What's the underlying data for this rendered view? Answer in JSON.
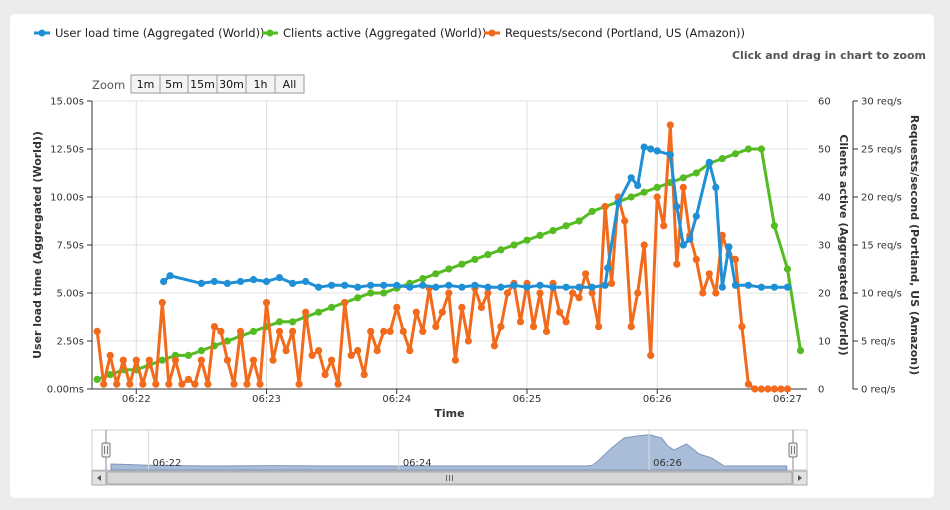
{
  "hint": "Click and drag in chart to zoom",
  "zoom": {
    "label": "Zoom",
    "buttons": [
      "1m",
      "5m",
      "15m",
      "30m",
      "1h",
      "All"
    ]
  },
  "colors": {
    "series0": "#1f8fd6",
    "series1": "#55bb22",
    "series2": "#f26a1b",
    "navigator_fill": "#a9bcd8",
    "navigator_line": "#7f96bb",
    "grid": "#e0e0e0"
  },
  "chart_data": {
    "type": "line",
    "xlabel": "Time",
    "x_axis": {
      "ticks": [
        "06:22",
        "06:23",
        "06:24",
        "06:25",
        "06:26",
        "06:27"
      ],
      "range_minutes": [
        -0.34,
        5.15
      ]
    },
    "y_axes": [
      {
        "title": "User load time (Aggregated (World))",
        "min": 0,
        "max": 15,
        "tick_labels": [
          "0.00ms",
          "2.50s",
          "5.00s",
          "7.50s",
          "10.00s",
          "12.50s",
          "15.00s"
        ]
      },
      {
        "title": "Clients active (Aggregated (World))",
        "min": 0,
        "max": 60,
        "tick_labels": [
          "0",
          "10",
          "20",
          "30",
          "40",
          "50",
          "60"
        ]
      },
      {
        "title": "Requests/second (Portland, US (Amazon))",
        "min": 0,
        "max": 30,
        "tick_labels": [
          "0 req/s",
          "5 req/s",
          "10 req/s",
          "15 req/s",
          "20 req/s",
          "25 req/s",
          "30 req/s"
        ]
      }
    ],
    "series": [
      {
        "name": "User load time (Aggregated (World))",
        "unit": "s",
        "axis": 0,
        "x": [
          0.21,
          0.26,
          0.5,
          0.6,
          0.7,
          0.8,
          0.9,
          1.0,
          1.1,
          1.2,
          1.3,
          1.4,
          1.5,
          1.6,
          1.7,
          1.8,
          1.9,
          2.0,
          2.1,
          2.2,
          2.3,
          2.4,
          2.5,
          2.6,
          2.7,
          2.8,
          2.9,
          3.0,
          3.1,
          3.2,
          3.3,
          3.4,
          3.5,
          3.6,
          3.62,
          3.7,
          3.8,
          3.85,
          3.9,
          3.95,
          4.0,
          4.1,
          4.15,
          4.2,
          4.25,
          4.3,
          4.4,
          4.45,
          4.5,
          4.55,
          4.6,
          4.7,
          4.8,
          4.9,
          5.0
        ],
        "y": [
          5.6,
          5.9,
          5.5,
          5.6,
          5.5,
          5.6,
          5.7,
          5.6,
          5.8,
          5.5,
          5.6,
          5.3,
          5.4,
          5.4,
          5.3,
          5.4,
          5.4,
          5.4,
          5.3,
          5.4,
          5.3,
          5.4,
          5.3,
          5.4,
          5.3,
          5.3,
          5.4,
          5.3,
          5.4,
          5.3,
          5.3,
          5.3,
          5.3,
          5.4,
          6.3,
          9.7,
          11.0,
          10.6,
          12.6,
          12.5,
          12.4,
          12.2,
          9.5,
          7.5,
          7.8,
          9.0,
          11.8,
          10.5,
          5.3,
          7.4,
          5.4,
          5.4,
          5.3,
          5.3,
          5.3
        ]
      },
      {
        "name": "Clients active (Aggregated (World))",
        "unit": "",
        "axis": 1,
        "x": [
          -0.3,
          -0.2,
          -0.1,
          0.0,
          0.1,
          0.2,
          0.3,
          0.4,
          0.5,
          0.6,
          0.7,
          0.8,
          0.9,
          1.0,
          1.1,
          1.2,
          1.3,
          1.4,
          1.5,
          1.6,
          1.7,
          1.8,
          1.9,
          2.0,
          2.1,
          2.2,
          2.3,
          2.4,
          2.5,
          2.6,
          2.7,
          2.8,
          2.9,
          3.0,
          3.1,
          3.2,
          3.3,
          3.4,
          3.5,
          3.6,
          3.7,
          3.8,
          3.9,
          4.0,
          4.1,
          4.2,
          4.3,
          4.4,
          4.5,
          4.6,
          4.7,
          4.8,
          4.9,
          5.0,
          5.1
        ],
        "y": [
          2,
          3,
          4,
          4,
          5,
          6,
          7,
          7,
          8,
          9,
          10,
          11,
          12,
          13,
          14,
          14,
          15,
          16,
          17,
          18,
          19,
          20,
          20,
          21,
          22,
          23,
          24,
          25,
          26,
          27,
          28,
          29,
          30,
          31,
          32,
          33,
          34,
          35,
          37,
          38,
          39,
          40,
          41,
          42,
          43,
          44,
          45,
          47,
          48,
          49,
          50,
          50,
          34,
          25,
          8
        ]
      },
      {
        "name": "Requests/second (Portland, US (Amazon))",
        "unit": "req/s",
        "axis": 2,
        "x": [
          -0.3,
          -0.25,
          -0.2,
          -0.15,
          -0.1,
          -0.05,
          0.0,
          0.05,
          0.1,
          0.15,
          0.2,
          0.25,
          0.3,
          0.35,
          0.4,
          0.45,
          0.5,
          0.55,
          0.6,
          0.65,
          0.7,
          0.75,
          0.8,
          0.85,
          0.9,
          0.95,
          1.0,
          1.05,
          1.1,
          1.15,
          1.2,
          1.25,
          1.3,
          1.35,
          1.4,
          1.45,
          1.5,
          1.55,
          1.6,
          1.65,
          1.7,
          1.75,
          1.8,
          1.85,
          1.9,
          1.95,
          2.0,
          2.05,
          2.1,
          2.15,
          2.2,
          2.25,
          2.3,
          2.35,
          2.4,
          2.45,
          2.5,
          2.55,
          2.6,
          2.65,
          2.7,
          2.75,
          2.8,
          2.85,
          2.9,
          2.95,
          3.0,
          3.05,
          3.1,
          3.15,
          3.2,
          3.25,
          3.3,
          3.35,
          3.4,
          3.45,
          3.5,
          3.55,
          3.6,
          3.65,
          3.7,
          3.75,
          3.8,
          3.85,
          3.9,
          3.95,
          4.0,
          4.05,
          4.1,
          4.15,
          4.2,
          4.25,
          4.3,
          4.35,
          4.4,
          4.45,
          4.5,
          4.55,
          4.6,
          4.65,
          4.7,
          4.75,
          4.8,
          4.85,
          4.9,
          4.95,
          5.0
        ],
        "y": [
          6,
          0.5,
          3.5,
          0.5,
          3,
          0.5,
          3,
          0.5,
          3,
          0.5,
          9,
          0.5,
          3,
          0.5,
          1,
          0.5,
          3,
          0.5,
          6.5,
          6,
          3,
          0.5,
          6,
          0.5,
          3,
          0.5,
          9,
          3,
          6,
          4,
          6,
          0.5,
          8,
          3.5,
          4,
          1.5,
          3,
          0.5,
          9,
          3.5,
          4,
          1.5,
          6,
          4,
          6,
          6,
          8.5,
          6,
          4,
          8,
          6,
          10.5,
          6.5,
          8,
          10,
          3,
          8.5,
          5,
          10.5,
          8.5,
          10,
          4.5,
          6.5,
          10,
          11,
          7,
          11,
          6.5,
          10,
          6,
          11,
          8,
          7,
          10,
          9.5,
          12,
          10,
          6.5,
          19,
          11,
          20,
          17.5,
          6.5,
          10,
          15,
          3.5,
          20,
          17,
          27.5,
          13,
          21,
          16,
          13.5,
          10,
          12,
          10,
          16,
          14,
          13.5,
          6.5,
          0.5,
          0,
          0,
          0,
          0,
          0,
          0
        ]
      }
    ],
    "legend": {
      "position": "top-left",
      "items": [
        "User load time (Aggregated (World))",
        "Clients active (Aggregated (World))",
        "Requests/second (Portland, US (Amazon))"
      ]
    },
    "grid": true,
    "navigator": {
      "ticks": [
        "06:22",
        "06:24",
        "06:26"
      ],
      "x": [
        -0.3,
        0.0,
        0.5,
        1.0,
        1.5,
        2.0,
        2.5,
        3.0,
        3.5,
        3.55,
        3.6,
        3.7,
        3.8,
        3.9,
        4.0,
        4.1,
        4.15,
        4.2,
        4.3,
        4.4,
        4.5,
        4.6,
        4.8,
        5.0,
        5.1
      ],
      "y": [
        1.5,
        1.2,
        1.0,
        1.1,
        1.0,
        1.0,
        1.0,
        1.0,
        1.0,
        1.2,
        2.5,
        5.5,
        8.0,
        8.5,
        8.8,
        8.0,
        6.0,
        5.0,
        6.5,
        4.0,
        3.0,
        1.0,
        1.0,
        1.0,
        1.0
      ]
    }
  }
}
